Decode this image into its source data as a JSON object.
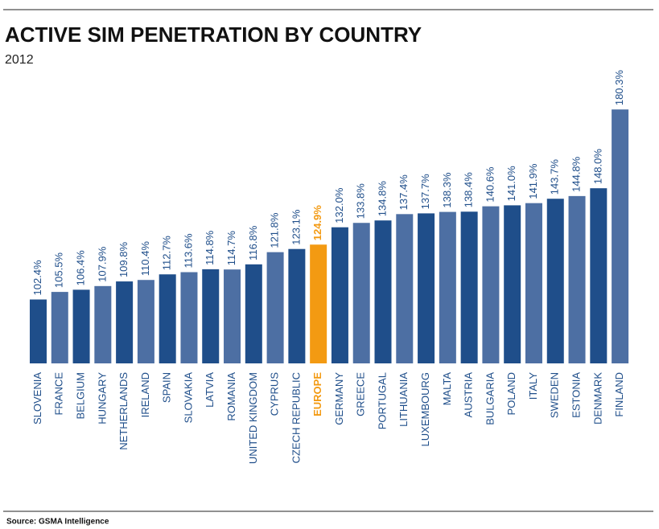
{
  "chart_data": {
    "type": "bar",
    "title": "ACTIVE SIM PENETRATION BY COUNTRY",
    "subtitle": "2012",
    "source": "Source: GSMA Intelligence",
    "categories": [
      "SLOVENIA",
      "FRANCE",
      "BELGIUM",
      "HUNGARY",
      "NETHERLANDS",
      "IRELAND",
      "SPAIN",
      "SLOVAKIA",
      "LATVIA",
      "ROMANIA",
      "UNITED KINGDOM",
      "CYPRUS",
      "CZECH REPUBLIC",
      "EUROPE",
      "GERMANY",
      "GREECE",
      "PORTUGAL",
      "LITHUANIA",
      "LUXEMBOURG",
      "MALTA",
      "AUSTRIA",
      "BULGARIA",
      "POLAND",
      "ITALY",
      "SWEDEN",
      "ESTONIA",
      "DENMARK",
      "FINLAND"
    ],
    "values": [
      102.4,
      105.5,
      106.4,
      107.9,
      109.8,
      110.4,
      112.7,
      113.6,
      114.8,
      114.7,
      116.8,
      121.8,
      123.1,
      124.9,
      132.0,
      133.8,
      134.8,
      137.4,
      137.7,
      138.3,
      138.4,
      140.6,
      141.0,
      141.9,
      143.7,
      144.8,
      148.0,
      180.3
    ],
    "value_labels": [
      "102.4%",
      "105.5%",
      "106.4%",
      "107.9%",
      "109.8%",
      "110.4%",
      "112.7%",
      "113.6%",
      "114.8%",
      "114.7%",
      "116.8%",
      "121.8%",
      "123.1%",
      "124.9%",
      "132.0%",
      "133.8%",
      "134.8%",
      "137.4%",
      "137.7%",
      "138.3%",
      "138.4%",
      "140.6%",
      "141.0%",
      "141.9%",
      "143.7%",
      "144.8%",
      "148.0%",
      "180.3%"
    ],
    "colors": [
      "#1f4e8a",
      "#4d6fa3",
      "#1f4e8a",
      "#4d6fa3",
      "#1f4e8a",
      "#4d6fa3",
      "#1f4e8a",
      "#4d6fa3",
      "#1f4e8a",
      "#4d6fa3",
      "#1f4e8a",
      "#4d6fa3",
      "#1f4e8a",
      "#f39a12",
      "#1f4e8a",
      "#4d6fa3",
      "#1f4e8a",
      "#4d6fa3",
      "#1f4e8a",
      "#4d6fa3",
      "#1f4e8a",
      "#4d6fa3",
      "#1f4e8a",
      "#4d6fa3",
      "#1f4e8a",
      "#4d6fa3",
      "#1f4e8a",
      "#4d6fa3"
    ],
    "ylim": [
      76.2,
      182
    ]
  }
}
